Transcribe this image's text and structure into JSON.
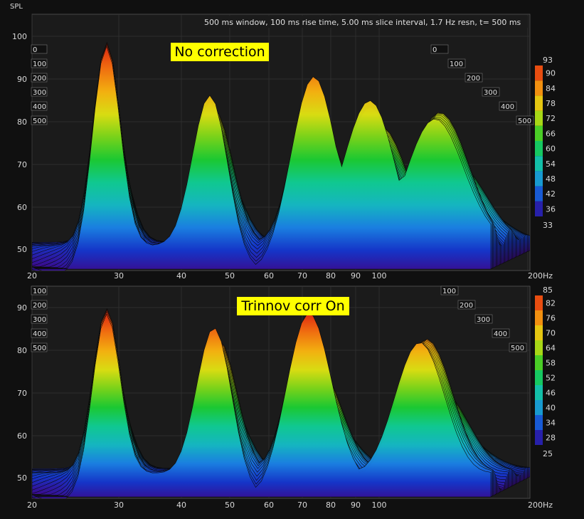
{
  "header": {
    "ylabel": "SPL",
    "info": "500 ms window, 100 ms rise time, 5.00 ms slice interval, 1.7 Hz resn, t= 500 ms"
  },
  "colors": {
    "background": "#101010",
    "plot_bg": "#1b1b1b",
    "grid": "#3a3a3a",
    "axis_text": "#d8d8d8",
    "annotation_bg": "#ffff00",
    "colormap": [
      "#3a0a8c",
      "#1535c8",
      "#1a7ee0",
      "#15b5c0",
      "#10c890",
      "#1bc832",
      "#78d21a",
      "#d8dc12",
      "#f2b010",
      "#f07010",
      "#e02a10"
    ]
  },
  "chart_data": [
    {
      "type": "waterfall",
      "annotation": "No correction",
      "ylabel": "SPL",
      "xunit": "Hz",
      "x_ticks": [
        "20",
        "30",
        "40",
        "50",
        "60",
        "70",
        "80",
        "90",
        "100",
        "200Hz"
      ],
      "y_ticks": [
        "100",
        "90",
        "80",
        "70",
        "60",
        "50"
      ],
      "ylim": [
        45,
        103
      ],
      "xlim": [
        20,
        200
      ],
      "xscale": "log",
      "time_ticks_left": [
        "0",
        "100",
        "200",
        "300",
        "400",
        "500"
      ],
      "time_ticks_right": [
        "0",
        "100",
        "200",
        "300",
        "400",
        "500"
      ],
      "time_unit": "ms",
      "colorbar": {
        "min_label": "33",
        "max_label": "93",
        "ticks": [
          "90",
          "84",
          "78",
          "72",
          "66",
          "60",
          "54",
          "48",
          "42",
          "36"
        ]
      },
      "peaks_front_slice": [
        {
          "freq": 29,
          "spl": 93
        },
        {
          "freq": 49,
          "spl": 84
        },
        {
          "freq": 82,
          "spl": 84
        },
        {
          "freq": 110,
          "spl": 81
        },
        {
          "freq": 150,
          "spl": 80
        }
      ]
    },
    {
      "type": "waterfall",
      "annotation": "Trinnov corr On",
      "ylabel": "SPL",
      "xunit": "Hz",
      "x_ticks": [
        "20",
        "30",
        "40",
        "50",
        "60",
        "70",
        "80",
        "90",
        "100",
        "200Hz"
      ],
      "y_ticks": [
        "90",
        "80",
        "70",
        "60",
        "50"
      ],
      "ylim": [
        45,
        93
      ],
      "xlim": [
        20,
        200
      ],
      "xscale": "log",
      "time_ticks_left": [
        "100",
        "200",
        "300",
        "400",
        "500"
      ],
      "time_ticks_right": [
        "100",
        "200",
        "300",
        "400",
        "500"
      ],
      "time_unit": "ms",
      "colorbar": {
        "min_label": "25",
        "max_label": "85",
        "ticks": [
          "82",
          "76",
          "70",
          "64",
          "58",
          "52",
          "46",
          "40",
          "34",
          "28"
        ]
      },
      "peaks_front_slice": [
        {
          "freq": 29,
          "spl": 84
        },
        {
          "freq": 50,
          "spl": 83
        },
        {
          "freq": 80,
          "spl": 82
        },
        {
          "freq": 140,
          "spl": 81
        }
      ]
    }
  ]
}
